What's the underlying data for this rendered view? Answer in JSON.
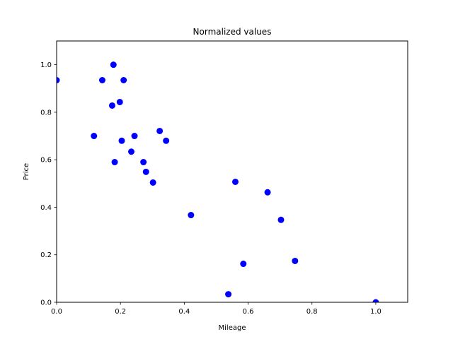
{
  "chart_data": {
    "type": "scatter",
    "title": "Normalized values",
    "xlabel": "Mileage",
    "ylabel": "Price",
    "xlim": [
      0,
      1.1
    ],
    "ylim": [
      0,
      1.1
    ],
    "xticks": [
      "0.0",
      "0.2",
      "0.4",
      "0.6",
      "0.8",
      "1.0"
    ],
    "yticks": [
      "0.0",
      "0.2",
      "0.4",
      "0.6",
      "0.8",
      "1.0"
    ],
    "grid": false,
    "legend": "none",
    "marker_color": "#0000ff",
    "series": [
      {
        "points": [
          [
            0.0,
            0.935
          ],
          [
            0.117,
            0.7
          ],
          [
            0.143,
            0.935
          ],
          [
            0.174,
            0.828
          ],
          [
            0.178,
            1.0
          ],
          [
            0.182,
            0.59
          ],
          [
            0.198,
            0.843
          ],
          [
            0.204,
            0.68
          ],
          [
            0.21,
            0.935
          ],
          [
            0.234,
            0.634
          ],
          [
            0.244,
            0.7
          ],
          [
            0.272,
            0.59
          ],
          [
            0.28,
            0.549
          ],
          [
            0.302,
            0.504
          ],
          [
            0.323,
            0.721
          ],
          [
            0.343,
            0.68
          ],
          [
            0.421,
            0.367
          ],
          [
            0.538,
            0.034
          ],
          [
            0.56,
            0.507
          ],
          [
            0.585,
            0.162
          ],
          [
            0.661,
            0.463
          ],
          [
            0.703,
            0.347
          ],
          [
            0.747,
            0.174
          ],
          [
            1.0,
            0.0
          ]
        ]
      }
    ]
  }
}
